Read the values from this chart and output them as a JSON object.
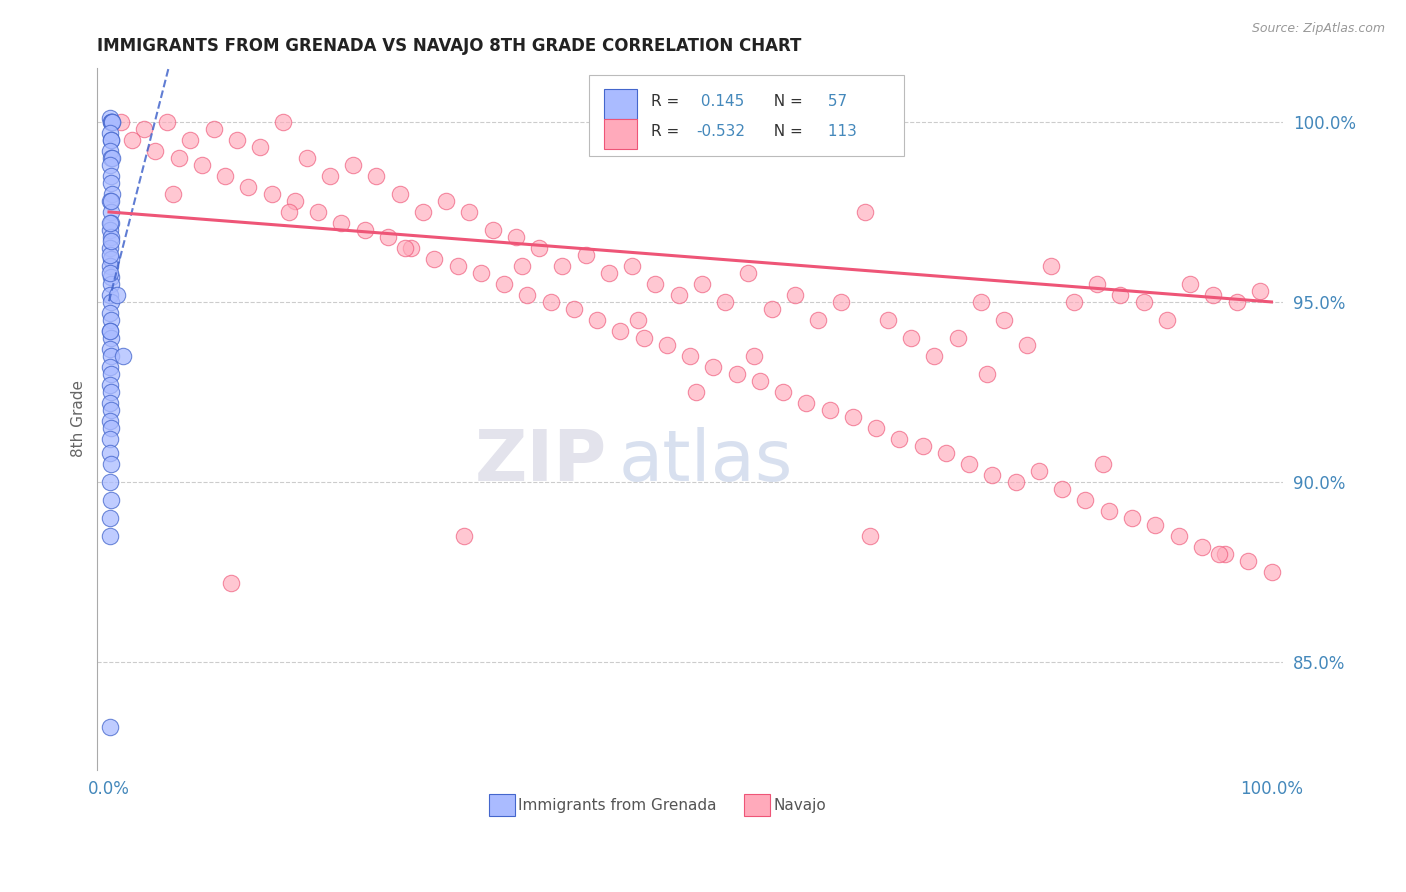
{
  "title": "IMMIGRANTS FROM GRENADA VS NAVAJO 8TH GRADE CORRELATION CHART",
  "source_text": "Source: ZipAtlas.com",
  "ylabel": "8th Grade",
  "legend_label1": "Immigrants from Grenada",
  "legend_label2": "Navajo",
  "R1": 0.145,
  "N1": 57,
  "R2": -0.532,
  "N2": 113,
  "xlim": [
    -1.0,
    101.0
  ],
  "ylim": [
    82.0,
    101.5
  ],
  "yticks": [
    85.0,
    90.0,
    95.0,
    100.0
  ],
  "ytick_labels": [
    "85.0%",
    "90.0%",
    "95.0%",
    "100.0%"
  ],
  "xtick_labels": [
    "0.0%",
    "100.0%"
  ],
  "color_blue": "#aabbff",
  "color_pink": "#ffaabb",
  "color_blue_line": "#4466cc",
  "color_pink_line": "#ee5577",
  "watermark_ZIP": "ZIP",
  "watermark_atlas": "atlas",
  "title_color": "#222222",
  "axis_label_color": "#666666",
  "tick_color": "#4488bb",
  "grid_color": "#cccccc",
  "blue_scatter_x": [
    0.1,
    0.15,
    0.2,
    0.25,
    0.3,
    0.1,
    0.15,
    0.2,
    0.1,
    0.2,
    0.3,
    0.1,
    0.15,
    0.2,
    0.25,
    0.1,
    0.15,
    0.2,
    0.1,
    0.15,
    0.1,
    0.2,
    0.1,
    0.15,
    0.2,
    0.1,
    0.2,
    0.1,
    0.15,
    0.1,
    0.2,
    0.1,
    0.15,
    0.1,
    0.2,
    0.1,
    0.15,
    0.1,
    0.2,
    0.1,
    0.15,
    0.1,
    0.1,
    0.15,
    0.1,
    0.2,
    0.1,
    0.1,
    0.7,
    0.1,
    0.15,
    0.1,
    0.2,
    0.1,
    1.2,
    0.1,
    0.1
  ],
  "blue_scatter_y": [
    100.1,
    100.0,
    100.0,
    100.0,
    100.0,
    99.7,
    99.5,
    99.5,
    99.2,
    99.0,
    99.0,
    98.8,
    98.5,
    98.3,
    98.0,
    97.8,
    97.5,
    97.2,
    97.0,
    96.8,
    96.5,
    96.2,
    96.0,
    95.7,
    95.5,
    95.2,
    95.0,
    94.7,
    94.5,
    94.2,
    94.0,
    93.7,
    93.5,
    93.2,
    93.0,
    92.7,
    92.5,
    92.2,
    92.0,
    91.7,
    91.5,
    91.2,
    90.8,
    90.5,
    90.0,
    89.5,
    89.0,
    88.5,
    95.2,
    96.3,
    97.8,
    97.2,
    96.7,
    95.8,
    93.5,
    94.2,
    83.2
  ],
  "pink_scatter_x": [
    1.0,
    3.0,
    5.0,
    7.0,
    9.0,
    11.0,
    13.0,
    15.0,
    17.0,
    19.0,
    21.0,
    23.0,
    25.0,
    27.0,
    29.0,
    31.0,
    33.0,
    35.0,
    37.0,
    39.0,
    41.0,
    43.0,
    45.0,
    47.0,
    49.0,
    51.0,
    53.0,
    55.0,
    57.0,
    59.0,
    61.0,
    63.0,
    65.0,
    67.0,
    69.0,
    71.0,
    73.0,
    75.0,
    77.0,
    79.0,
    81.0,
    83.0,
    85.0,
    87.0,
    89.0,
    91.0,
    93.0,
    95.0,
    97.0,
    99.0,
    2.0,
    4.0,
    6.0,
    8.0,
    10.0,
    12.0,
    14.0,
    16.0,
    18.0,
    20.0,
    22.0,
    24.0,
    26.0,
    28.0,
    30.0,
    32.0,
    34.0,
    36.0,
    38.0,
    40.0,
    42.0,
    44.0,
    46.0,
    48.0,
    50.0,
    52.0,
    54.0,
    56.0,
    58.0,
    60.0,
    62.0,
    64.0,
    66.0,
    68.0,
    70.0,
    72.0,
    74.0,
    76.0,
    78.0,
    80.0,
    82.0,
    84.0,
    86.0,
    88.0,
    90.0,
    92.0,
    94.0,
    96.0,
    98.0,
    100.0,
    5.5,
    15.5,
    25.5,
    35.5,
    45.5,
    55.5,
    65.5,
    75.5,
    85.5,
    95.5,
    10.5,
    30.5,
    50.5
  ],
  "pink_scatter_y": [
    100.0,
    99.8,
    100.0,
    99.5,
    99.8,
    99.5,
    99.3,
    100.0,
    99.0,
    98.5,
    98.8,
    98.5,
    98.0,
    97.5,
    97.8,
    97.5,
    97.0,
    96.8,
    96.5,
    96.0,
    96.3,
    95.8,
    96.0,
    95.5,
    95.2,
    95.5,
    95.0,
    95.8,
    94.8,
    95.2,
    94.5,
    95.0,
    97.5,
    94.5,
    94.0,
    93.5,
    94.0,
    95.0,
    94.5,
    93.8,
    96.0,
    95.0,
    95.5,
    95.2,
    95.0,
    94.5,
    95.5,
    95.2,
    95.0,
    95.3,
    99.5,
    99.2,
    99.0,
    98.8,
    98.5,
    98.2,
    98.0,
    97.8,
    97.5,
    97.2,
    97.0,
    96.8,
    96.5,
    96.2,
    96.0,
    95.8,
    95.5,
    95.2,
    95.0,
    94.8,
    94.5,
    94.2,
    94.0,
    93.8,
    93.5,
    93.2,
    93.0,
    92.8,
    92.5,
    92.2,
    92.0,
    91.8,
    91.5,
    91.2,
    91.0,
    90.8,
    90.5,
    90.2,
    90.0,
    90.3,
    89.8,
    89.5,
    89.2,
    89.0,
    88.8,
    88.5,
    88.2,
    88.0,
    87.8,
    87.5,
    98.0,
    97.5,
    96.5,
    96.0,
    94.5,
    93.5,
    88.5,
    93.0,
    90.5,
    88.0,
    87.2,
    88.5,
    92.5
  ]
}
